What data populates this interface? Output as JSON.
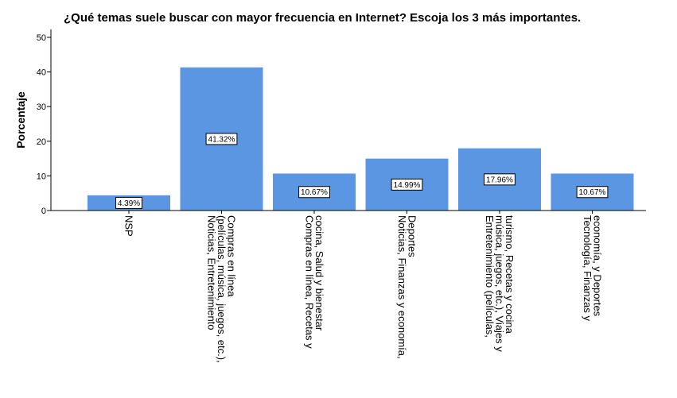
{
  "chart_data": {
    "type": "bar",
    "title": "¿Qué temas suele buscar con mayor frecuencia en Internet? Escoja los 3 más importantes.",
    "xlabel": "",
    "ylabel": "Porcentaje",
    "ylim": [
      0,
      50
    ],
    "yticks": [
      0,
      10,
      20,
      30,
      40,
      50
    ],
    "grid": false,
    "bar_color": "#5b96e3",
    "categories": [
      [
        "NSP"
      ],
      [
        "Noticias, Entretenimiento",
        "(películas, música, juegos, etc.),",
        "Compras en línea"
      ],
      [
        "Compras en línea, Recetas y",
        "cocina, Salud y bienestar"
      ],
      [
        "Noticias, Finanzas y economía,",
        "Deportes"
      ],
      [
        "Entretenimiento (películas,",
        "música, juegos, etc.), Viajes y",
        "turismo, Recetas y cocina"
      ],
      [
        "Tecnología, Finanzas y",
        "economía, y Deportes"
      ]
    ],
    "values": [
      4.39,
      41.32,
      10.67,
      14.99,
      17.96,
      10.67
    ],
    "data_labels": [
      "4.39%",
      "41.32%",
      "10.67%",
      "14.99%",
      "17.96%",
      "10.67%"
    ]
  }
}
